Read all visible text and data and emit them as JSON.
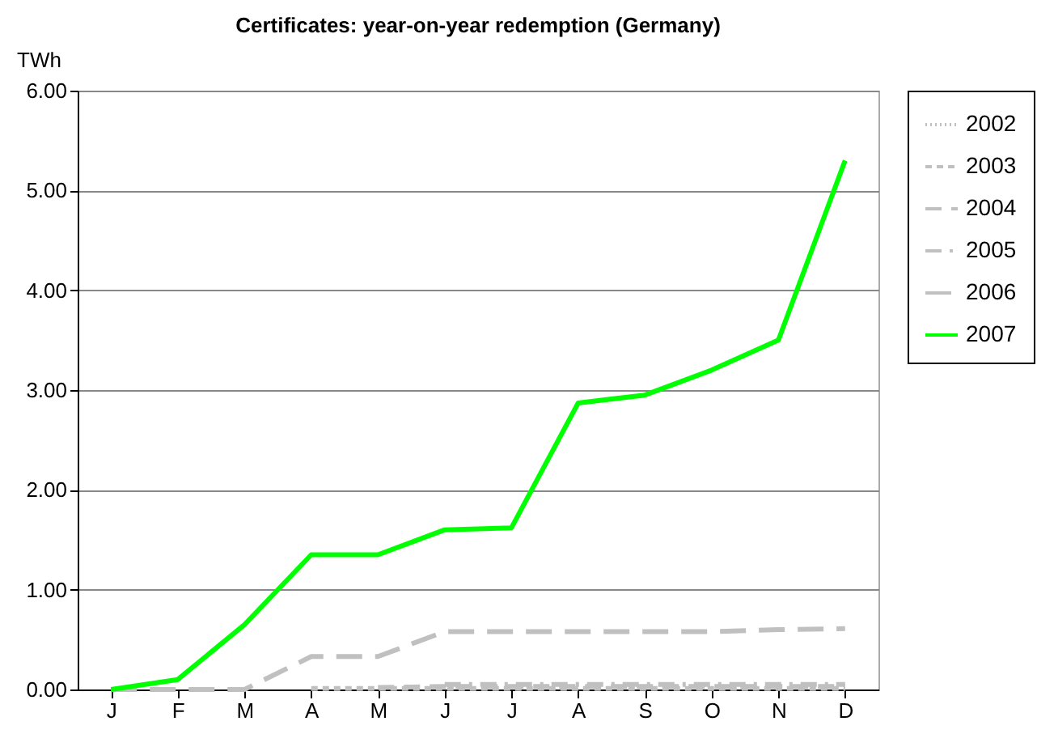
{
  "chart_data": {
    "type": "line",
    "title": "Certificates: year-on-year redemption (Germany)",
    "ylabel": "TWh",
    "categories": [
      "J",
      "F",
      "M",
      "A",
      "M",
      "J",
      "J",
      "A",
      "S",
      "O",
      "N",
      "D"
    ],
    "series": [
      {
        "name": "2002",
        "color": "#c0c0c0",
        "line_style": "dotted",
        "values": [
          null,
          null,
          null,
          null,
          null,
          null,
          null,
          null,
          null,
          null,
          null,
          null
        ]
      },
      {
        "name": "2003",
        "color": "#c0c0c0",
        "line_style": "dashed",
        "values": [
          null,
          null,
          null,
          0.01,
          0.01,
          0.01,
          0.01,
          0.01,
          0.01,
          0.01,
          0.01,
          0.01
        ]
      },
      {
        "name": "2004",
        "color": "#c0c0c0",
        "line_style": "dashed",
        "values": [
          null,
          null,
          null,
          null,
          0.02,
          0.03,
          0.03,
          0.03,
          0.03,
          0.03,
          0.03,
          0.03
        ]
      },
      {
        "name": "2005",
        "color": "#c0c0c0",
        "line_style": "dashed",
        "values": [
          null,
          null,
          null,
          null,
          null,
          0.05,
          0.05,
          0.05,
          0.05,
          0.05,
          0.05,
          0.05
        ]
      },
      {
        "name": "2006",
        "color": "#c0c0c0",
        "line_style": "dashed",
        "values": [
          0,
          0,
          0,
          0.33,
          0.33,
          0.58,
          0.58,
          0.58,
          0.58,
          0.58,
          0.6,
          0.61
        ]
      },
      {
        "name": "2007",
        "color": "#00ff00",
        "line_style": "solid",
        "values": [
          0,
          0.1,
          0.65,
          1.35,
          1.35,
          1.6,
          1.62,
          2.87,
          2.95,
          3.2,
          3.5,
          5.3
        ]
      }
    ],
    "ylim": [
      0,
      6
    ],
    "yticks": [
      {
        "value": 0,
        "label": "0.00"
      },
      {
        "value": 1,
        "label": "1.00"
      },
      {
        "value": 2,
        "label": "2.00"
      },
      {
        "value": 3,
        "label": "3.00"
      },
      {
        "value": 4,
        "label": "4.00"
      },
      {
        "value": 5,
        "label": "5.00"
      },
      {
        "value": 6,
        "label": "6.00"
      }
    ],
    "grid": "y",
    "legend": "right",
    "marker": "none"
  }
}
